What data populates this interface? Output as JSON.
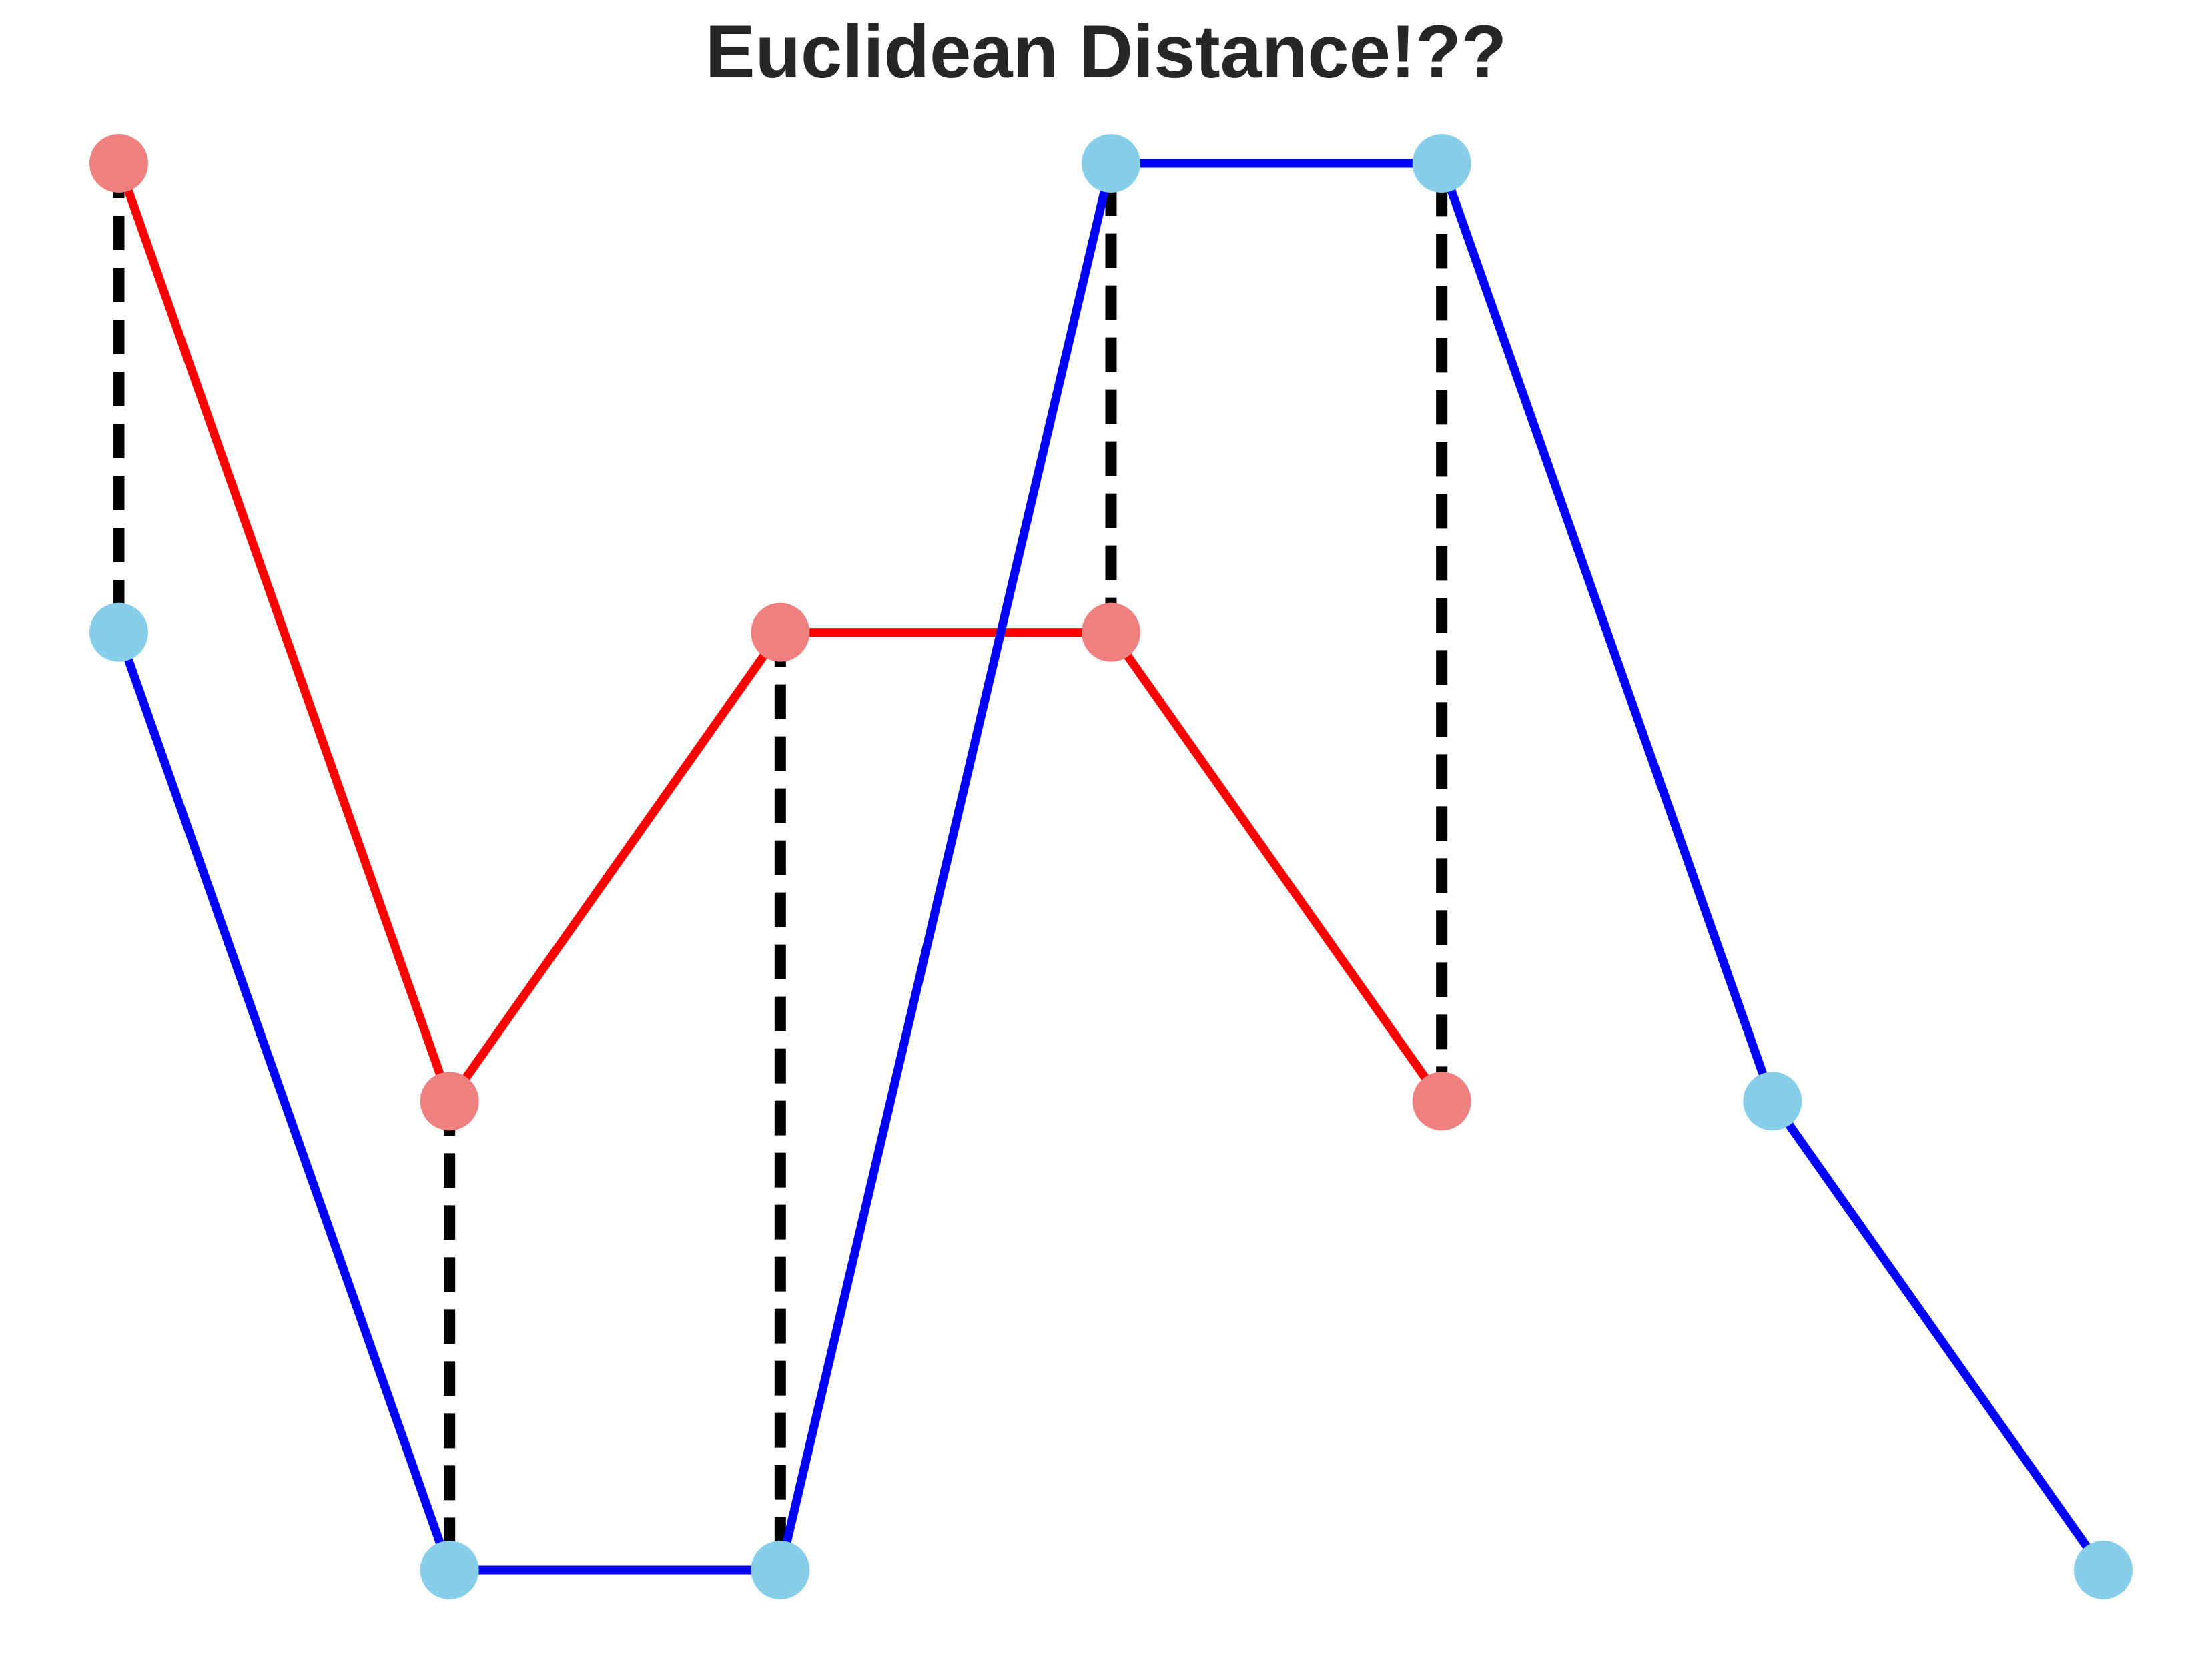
{
  "chart_data": {
    "type": "line",
    "title": "Euclidean Distance!??",
    "xlabel": "",
    "ylabel": "",
    "grid": false,
    "axes_visible": false,
    "xlim": [
      0,
      6
    ],
    "ylim": [
      0,
      3
    ],
    "series": [
      {
        "x": [
          0,
          1,
          2,
          3,
          4
        ],
        "y": [
          3,
          1,
          2,
          2,
          1
        ],
        "line_color": "#ff0000",
        "marker_color": "#f08080"
      },
      {
        "x": [
          0,
          1,
          2,
          3,
          4,
          5,
          6
        ],
        "y": [
          2,
          0,
          0,
          3,
          3,
          1,
          0
        ],
        "line_color": "#0000ff",
        "marker_color": "#87ceeb"
      }
    ],
    "connectors": {
      "style": "dashed",
      "color": "#000000",
      "pairs_x": [
        0,
        1,
        2,
        3,
        4
      ]
    }
  }
}
